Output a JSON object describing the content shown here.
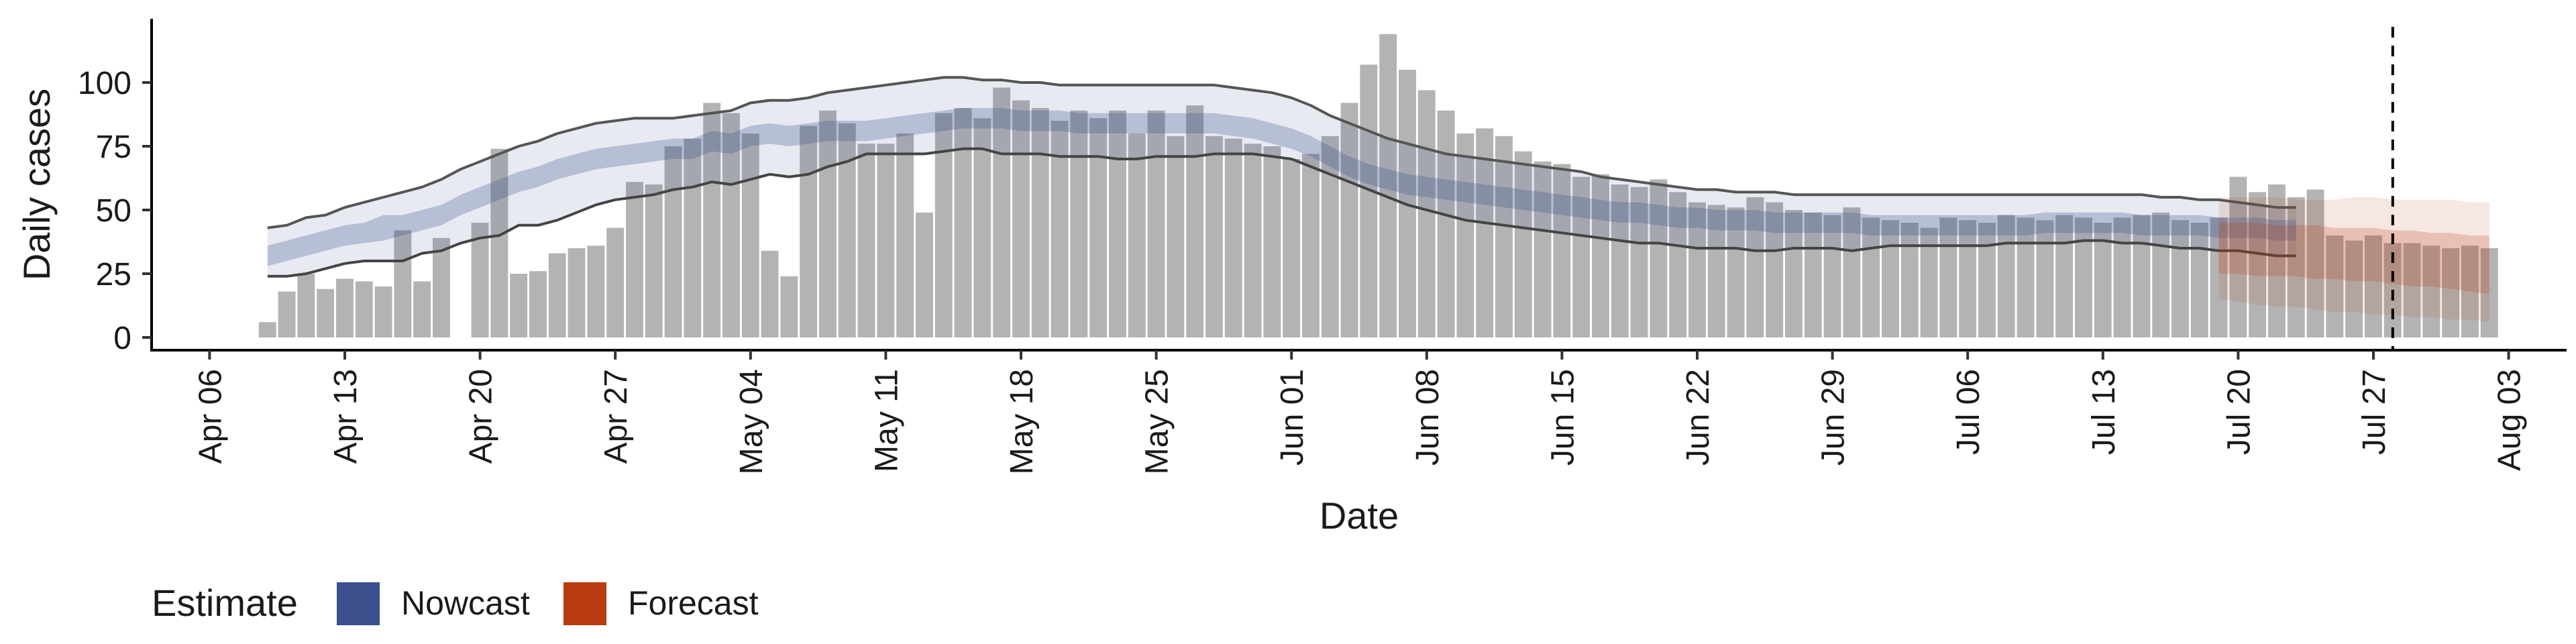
{
  "chart_data": {
    "type": "bar",
    "xlabel": "Date",
    "ylabel": "Daily cases",
    "x_range": [
      "2020-04-03",
      "2020-08-06"
    ],
    "ylim": [
      -5,
      125
    ],
    "y_ticks": [
      0,
      25,
      50,
      75,
      100
    ],
    "x_ticks": [
      {
        "date": "2020-04-06",
        "label": "Apr 06"
      },
      {
        "date": "2020-04-13",
        "label": "Apr 13"
      },
      {
        "date": "2020-04-20",
        "label": "Apr 20"
      },
      {
        "date": "2020-04-27",
        "label": "Apr 27"
      },
      {
        "date": "2020-05-04",
        "label": "May 04"
      },
      {
        "date": "2020-05-11",
        "label": "May 11"
      },
      {
        "date": "2020-05-18",
        "label": "May 18"
      },
      {
        "date": "2020-05-25",
        "label": "May 25"
      },
      {
        "date": "2020-06-01",
        "label": "Jun 01"
      },
      {
        "date": "2020-06-08",
        "label": "Jun 08"
      },
      {
        "date": "2020-06-15",
        "label": "Jun 15"
      },
      {
        "date": "2020-06-22",
        "label": "Jun 22"
      },
      {
        "date": "2020-06-29",
        "label": "Jun 29"
      },
      {
        "date": "2020-07-06",
        "label": "Jul 06"
      },
      {
        "date": "2020-07-13",
        "label": "Jul 13"
      },
      {
        "date": "2020-07-20",
        "label": "Jul 20"
      },
      {
        "date": "2020-07-27",
        "label": "Jul 27"
      },
      {
        "date": "2020-08-03",
        "label": "Aug 03"
      }
    ],
    "grid": false,
    "vline_date": "2020-07-28",
    "bars": {
      "start_date": "2020-04-09",
      "values": [
        6,
        18,
        25,
        19,
        23,
        22,
        20,
        42,
        22,
        39,
        0,
        45,
        74,
        25,
        26,
        33,
        35,
        36,
        43,
        61,
        60,
        75,
        78,
        92,
        88,
        80,
        34,
        24,
        83,
        89,
        84,
        76,
        76,
        80,
        49,
        88,
        90,
        86,
        98,
        93,
        90,
        85,
        89,
        86,
        89,
        80,
        89,
        79,
        91,
        79,
        78,
        76,
        75,
        70,
        72,
        79,
        92,
        107,
        119,
        105,
        97,
        89,
        80,
        82,
        79,
        73,
        69,
        68,
        63,
        64,
        60,
        59,
        62,
        57,
        53,
        52,
        51,
        55,
        53,
        50,
        49,
        48,
        51,
        47,
        46,
        45,
        43,
        47,
        46,
        45,
        48,
        47,
        46,
        48,
        47,
        45,
        47,
        48,
        49,
        46,
        45,
        47,
        63,
        57,
        60,
        55,
        58,
        40,
        38,
        40,
        37,
        37,
        36,
        35,
        36,
        35
      ]
    },
    "nowcast": {
      "name": "Nowcast",
      "color": "#3b4f8c",
      "start_date": "2020-04-09",
      "median": [
        32,
        34,
        36,
        38,
        40,
        41,
        43,
        44,
        46,
        48,
        52,
        55,
        58,
        61,
        63,
        66,
        68,
        70,
        71,
        72,
        73,
        74,
        74,
        77,
        76,
        79,
        80,
        79,
        80,
        81,
        81,
        81,
        82,
        83,
        84,
        85,
        86,
        86,
        86,
        85,
        85,
        85,
        84,
        84,
        84,
        84,
        84,
        84,
        84,
        84,
        83,
        82,
        80,
        78,
        75,
        71,
        67,
        64,
        62,
        60,
        59,
        58,
        57,
        56,
        55,
        54,
        53,
        52,
        51,
        50,
        49,
        49,
        48,
        47,
        47,
        46,
        46,
        46,
        45,
        45,
        45,
        45,
        45,
        44,
        44,
        44,
        44,
        44,
        44,
        44,
        44,
        44,
        45,
        45,
        45,
        45,
        45,
        44,
        44,
        44,
        44,
        43,
        43,
        43,
        42,
        42
      ],
      "inner_lower": [
        28,
        30,
        32,
        34,
        36,
        37,
        38,
        40,
        42,
        44,
        48,
        51,
        54,
        57,
        59,
        62,
        64,
        66,
        67,
        68,
        69,
        70,
        70,
        73,
        72,
        75,
        76,
        75,
        76,
        77,
        77,
        77,
        78,
        79,
        80,
        81,
        82,
        82,
        82,
        81,
        81,
        81,
        80,
        80,
        80,
        80,
        80,
        80,
        80,
        80,
        79,
        78,
        76,
        74,
        71,
        67,
        63,
        60,
        58,
        56,
        55,
        54,
        53,
        52,
        51,
        50,
        49,
        48,
        47,
        46,
        45,
        45,
        44,
        43,
        43,
        42,
        42,
        42,
        41,
        41,
        41,
        41,
        41,
        40,
        40,
        40,
        40,
        40,
        40,
        40,
        40,
        40,
        41,
        41,
        41,
        41,
        41,
        40,
        40,
        40,
        40,
        39,
        39,
        39,
        38,
        38
      ],
      "inner_upper": [
        36,
        38,
        40,
        42,
        44,
        45,
        48,
        48,
        50,
        52,
        56,
        59,
        62,
        65,
        67,
        70,
        72,
        74,
        75,
        76,
        77,
        78,
        78,
        81,
        80,
        83,
        84,
        83,
        84,
        85,
        85,
        85,
        86,
        87,
        88,
        89,
        90,
        90,
        90,
        89,
        89,
        89,
        88,
        88,
        88,
        88,
        88,
        88,
        88,
        88,
        87,
        86,
        84,
        82,
        79,
        75,
        71,
        68,
        66,
        64,
        63,
        62,
        61,
        60,
        59,
        58,
        57,
        56,
        55,
        54,
        53,
        53,
        52,
        51,
        51,
        50,
        50,
        50,
        49,
        49,
        49,
        49,
        49,
        48,
        48,
        48,
        48,
        48,
        48,
        48,
        48,
        48,
        49,
        49,
        49,
        49,
        49,
        48,
        48,
        48,
        48,
        47,
        47,
        47,
        46,
        46
      ],
      "outer_lower": [
        24,
        24,
        25,
        27,
        29,
        30,
        30,
        30,
        33,
        34,
        37,
        39,
        40,
        44,
        44,
        46,
        49,
        52,
        54,
        55,
        56,
        58,
        59,
        61,
        60,
        62,
        64,
        63,
        64,
        67,
        69,
        72,
        72,
        72,
        72,
        73,
        74,
        74,
        72,
        72,
        72,
        71,
        71,
        71,
        70,
        70,
        71,
        71,
        71,
        72,
        72,
        72,
        71,
        70,
        67,
        64,
        61,
        58,
        55,
        52,
        50,
        48,
        46,
        45,
        44,
        43,
        42,
        41,
        40,
        39,
        38,
        37,
        37,
        36,
        35,
        35,
        35,
        34,
        34,
        35,
        35,
        35,
        34,
        35,
        36,
        36,
        36,
        36,
        36,
        36,
        37,
        37,
        37,
        37,
        38,
        38,
        37,
        37,
        36,
        35,
        35,
        34,
        34,
        33,
        32,
        32
      ],
      "outer_upper": [
        43,
        44,
        47,
        48,
        51,
        53,
        55,
        57,
        59,
        62,
        66,
        69,
        72,
        75,
        77,
        80,
        82,
        84,
        85,
        86,
        86,
        86,
        87,
        88,
        89,
        92,
        93,
        93,
        94,
        96,
        97,
        98,
        99,
        100,
        101,
        102,
        102,
        101,
        101,
        100,
        100,
        99,
        99,
        99,
        99,
        99,
        99,
        99,
        99,
        99,
        98,
        97,
        96,
        94,
        91,
        87,
        84,
        81,
        78,
        76,
        74,
        72,
        71,
        70,
        69,
        68,
        67,
        66,
        65,
        63,
        62,
        61,
        60,
        59,
        58,
        58,
        57,
        57,
        57,
        56,
        56,
        56,
        56,
        56,
        56,
        56,
        56,
        56,
        56,
        56,
        56,
        56,
        56,
        56,
        56,
        56,
        56,
        56,
        55,
        55,
        54,
        54,
        53,
        52,
        51,
        51
      ]
    },
    "forecast": {
      "name": "Forecast",
      "color": "#b83c10",
      "start_date": "2020-07-19",
      "median": [
        37,
        36,
        36,
        35,
        35,
        35,
        34,
        34,
        34,
        33,
        33,
        33,
        33,
        32,
        32
      ],
      "inner_lower": [
        25,
        25,
        24,
        24,
        24,
        23,
        23,
        22,
        22,
        21,
        20,
        20,
        19,
        18,
        17
      ],
      "inner_upper": [
        45,
        45,
        45,
        44,
        44,
        44,
        43,
        43,
        43,
        42,
        42,
        41,
        41,
        40,
        40
      ],
      "outer_lower": [
        15,
        14,
        13,
        12,
        12,
        11,
        10,
        10,
        9,
        9,
        8,
        8,
        7,
        7,
        6
      ],
      "outer_upper": [
        55,
        55,
        55,
        55,
        54,
        54,
        54,
        55,
        55,
        54,
        54,
        54,
        54,
        53,
        53
      ]
    },
    "legend": {
      "title": "Estimate",
      "position": "bottom-left",
      "entries": [
        {
          "name": "Nowcast",
          "color": "#3b4f8c"
        },
        {
          "name": "Forecast",
          "color": "#b83c10"
        }
      ]
    }
  }
}
